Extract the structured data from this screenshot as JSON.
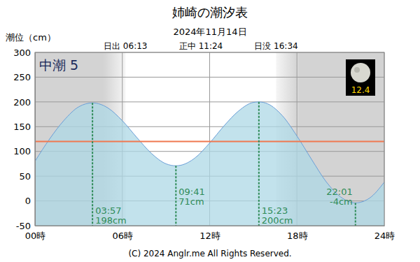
{
  "chart_data": {
    "type": "area",
    "title": "姉崎の潮汐表",
    "subtitle": "2024年11月14日",
    "y_label": "潮位（cm）",
    "tide_name": "中潮 5",
    "moon_age": 12.4,
    "footer": "(C) 2024 Anglr.me All Rights Reserved.",
    "color": "#6a9fd8",
    "x": [
      0,
      1,
      2,
      3,
      3.95,
      5,
      6,
      7,
      8,
      9,
      9.683,
      10,
      11,
      12,
      13,
      14,
      15,
      15.383,
      16,
      17,
      18,
      19,
      20,
      21,
      22.017,
      23,
      24
    ],
    "values": [
      80,
      125,
      163,
      190,
      198,
      188,
      162,
      128,
      96,
      75,
      71,
      72,
      87,
      117,
      152,
      182,
      199,
      200,
      196,
      172,
      131,
      84,
      39,
      8,
      -4,
      6,
      38
    ],
    "xlim": [
      0,
      24
    ],
    "xticks": [
      {
        "value": 0,
        "label": "00時"
      },
      {
        "value": 6,
        "label": "06時"
      },
      {
        "value": 12,
        "label": "12時"
      },
      {
        "value": 18,
        "label": "18時"
      },
      {
        "value": 24,
        "label": "24時"
      }
    ],
    "ylim": [
      -50,
      300
    ],
    "yticks": [
      -50,
      0,
      50,
      100,
      150,
      200,
      250,
      300
    ],
    "grid": true,
    "sun": [
      {
        "label": "日出 06:13",
        "x": 6.217
      },
      {
        "label": "正中 11:24",
        "x": 11.4
      },
      {
        "label": "日没 16:34",
        "x": 16.567
      }
    ],
    "reference_line": {
      "value": 120,
      "color": "#f07850"
    },
    "annotations": [
      {
        "x": 3.95,
        "y": 198,
        "time": "03:57",
        "label": "198cm"
      },
      {
        "x": 9.683,
        "y": 71,
        "time": "09:41",
        "label": "71cm"
      },
      {
        "x": 15.383,
        "y": 200,
        "time": "15:23",
        "label": "200cm"
      },
      {
        "x": 22.017,
        "y": -4,
        "time": "22:01",
        "label": "-4cm"
      }
    ]
  }
}
